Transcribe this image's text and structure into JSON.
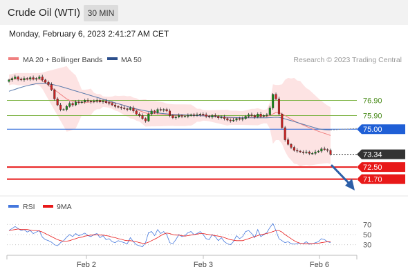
{
  "header": {
    "title": "Crude Oil (WTI)",
    "timeframe": "30 MIN"
  },
  "date_line": "Monday, February 6, 2023 2:41:27 AM CET",
  "legend": {
    "ma20": "MA 20 + Bollinger Bands",
    "ma50": "MA 50",
    "copyright": "Research © 2023 Trading Central"
  },
  "rsi_legend": {
    "rsi": "RSI",
    "ma9": "9MA"
  },
  "colors": {
    "up": "#1a8f1a",
    "down": "#cc2222",
    "ma20": "#f08080",
    "ma50": "#5577aa",
    "blue_level": "#1f5fd6",
    "support": "#e81919",
    "bands": "#fde3e3",
    "rsi": "#4477dd"
  },
  "chart_data": {
    "type": "candlestick",
    "price_axis": {
      "min": 71.0,
      "max": 79.2
    },
    "x_ticks": [
      "Feb 2",
      "Feb 3",
      "Feb 6"
    ],
    "levels": [
      {
        "label": "76.90",
        "value": 76.9,
        "kind": "resistance",
        "color": "#7cb342",
        "text_color": "#4a8c1c"
      },
      {
        "label": "75.90",
        "value": 75.9,
        "kind": "resistance",
        "color": "#7cb342",
        "text_color": "#4a8c1c"
      },
      {
        "label": "75.00",
        "value": 75.0,
        "kind": "pivot",
        "color": "#1f5fd6",
        "text_color": "#ffffff"
      },
      {
        "label": "72.50",
        "value": 72.5,
        "kind": "support",
        "color": "#e81919",
        "text_color": "#ffffff"
      },
      {
        "label": "71.70",
        "value": 71.7,
        "kind": "support",
        "color": "#e81919",
        "text_color": "#ffffff"
      }
    ],
    "last_price": {
      "label": "73.34",
      "value": 73.34
    },
    "close": [
      78.25,
      78.35,
      78.45,
      78.3,
      78.25,
      78.35,
      78.3,
      78.4,
      78.3,
      78.35,
      78.45,
      78.25,
      78.1,
      77.95,
      77.6,
      77.0,
      76.6,
      76.3,
      76.3,
      76.5,
      76.7,
      76.6,
      76.8,
      76.75,
      76.8,
      76.9,
      76.85,
      76.8,
      76.85,
      76.9,
      76.8,
      76.85,
      76.75,
      76.7,
      76.6,
      76.5,
      76.45,
      76.4,
      76.35,
      76.3,
      76.4,
      76.2,
      76.0,
      75.9,
      75.7,
      75.55,
      76.0,
      76.2,
      76.1,
      76.3,
      76.25,
      76.3,
      76.2,
      75.9,
      75.75,
      75.8,
      75.9,
      75.85,
      75.85,
      75.9,
      75.95,
      75.9,
      75.95,
      76.0,
      75.95,
      75.85,
      75.8,
      75.9,
      75.85,
      75.75,
      75.8,
      75.7,
      75.6,
      75.55,
      75.6,
      75.7,
      75.65,
      75.7,
      75.85,
      75.95,
      75.9,
      75.8,
      76.0,
      75.85,
      75.9,
      75.95,
      76.4,
      77.3,
      77.0,
      76.0,
      75.1,
      74.3,
      74.0,
      73.8,
      73.6,
      73.55,
      73.5,
      73.45,
      73.5,
      73.4,
      73.4,
      73.5,
      73.55,
      73.7,
      73.65,
      73.6,
      73.34
    ],
    "ma20": [
      78.25,
      78.3,
      78.32,
      78.3,
      78.3,
      78.3,
      78.3,
      78.32,
      78.3,
      78.32,
      78.3,
      78.2,
      78.05,
      77.9,
      77.75,
      77.6,
      77.45,
      77.3,
      77.15,
      77.0,
      76.9,
      76.85,
      76.8,
      76.78,
      76.77,
      76.77,
      76.78,
      76.8,
      76.8,
      76.82,
      76.82,
      76.82,
      76.8,
      76.78,
      76.75,
      76.72,
      76.68,
      76.62,
      76.57,
      76.5,
      76.45,
      76.38,
      76.3,
      76.22,
      76.15,
      76.07,
      76.03,
      76.02,
      76.02,
      76.01,
      76.0,
      75.98,
      75.95,
      75.94,
      75.93,
      75.92,
      75.92,
      75.92,
      75.92,
      75.93,
      75.93,
      75.92,
      75.92,
      75.92,
      75.91,
      75.9,
      75.88,
      75.86,
      75.84,
      75.82,
      75.8,
      75.78,
      75.76,
      75.75,
      75.75,
      75.75,
      75.74,
      75.74,
      75.76,
      75.78,
      75.8,
      75.8,
      75.82,
      75.82,
      75.83,
      75.85,
      75.9,
      76.0,
      76.1,
      76.1,
      76.0,
      75.9,
      75.78,
      75.65,
      75.55,
      75.45,
      75.36,
      75.27,
      75.18,
      75.1,
      75.02,
      74.94,
      74.86,
      74.79,
      74.72,
      74.66,
      74.58
    ],
    "ma50": [
      77.5,
      77.57,
      77.63,
      77.7,
      77.76,
      77.82,
      77.87,
      77.92,
      77.96,
      78.0,
      78.02,
      78.03,
      78.02,
      78.0,
      77.96,
      77.92,
      77.87,
      77.82,
      77.76,
      77.7,
      77.64,
      77.58,
      77.52,
      77.46,
      77.4,
      77.34,
      77.28,
      77.22,
      77.16,
      77.1,
      77.04,
      76.98,
      76.92,
      76.86,
      76.8,
      76.74,
      76.68,
      76.62,
      76.56,
      76.5,
      76.44,
      76.39,
      76.34,
      76.29,
      76.25,
      76.21,
      76.17,
      76.14,
      76.11,
      76.08,
      76.05,
      76.03,
      76.01,
      75.99,
      75.98,
      75.97,
      75.96,
      75.95,
      75.94,
      75.93,
      75.92,
      75.91,
      75.9,
      75.89,
      75.88,
      75.87,
      75.86,
      75.85,
      75.84,
      75.83,
      75.82,
      75.8,
      75.79,
      75.78,
      75.77,
      75.76,
      75.76,
      75.75,
      75.75,
      75.75,
      75.75,
      75.75,
      75.75,
      75.75,
      75.75,
      75.75,
      75.76,
      75.78,
      75.79,
      75.78,
      75.74,
      75.68,
      75.62,
      75.56,
      75.5,
      75.44,
      75.38,
      75.32,
      75.26,
      75.2,
      75.14,
      75.08,
      75.02,
      74.99,
      74.97,
      74.96,
      74.95
    ],
    "rsi": {
      "ticks": [
        30,
        50,
        70
      ],
      "rsi": [
        58,
        62,
        66,
        62,
        58,
        60,
        55,
        58,
        52,
        55,
        58,
        45,
        40,
        38,
        35,
        30,
        28,
        34,
        38,
        45,
        50,
        46,
        52,
        48,
        50,
        53,
        48,
        46,
        50,
        52,
        44,
        48,
        40,
        42,
        36,
        34,
        38,
        36,
        34,
        32,
        44,
        36,
        30,
        28,
        26,
        34,
        54,
        56,
        48,
        60,
        52,
        56,
        50,
        34,
        32,
        40,
        50,
        46,
        48,
        54,
        56,
        50,
        52,
        56,
        50,
        42,
        40,
        50,
        46,
        38,
        44,
        36,
        32,
        30,
        36,
        48,
        42,
        46,
        56,
        58,
        52,
        44,
        60,
        46,
        50,
        54,
        64,
        72,
        58,
        42,
        38,
        34,
        36,
        32,
        31,
        32,
        33,
        32,
        36,
        31,
        32,
        34,
        36,
        42,
        40,
        36,
        34
      ],
      "ma9": [
        58,
        59,
        60,
        61,
        60,
        60,
        60,
        59,
        58,
        58,
        57,
        55,
        52,
        49,
        46,
        43,
        40,
        38,
        37,
        37,
        38,
        40,
        42,
        44,
        45,
        47,
        48,
        49,
        49,
        50,
        49,
        49,
        48,
        47,
        45,
        44,
        42,
        41,
        39,
        38,
        38,
        37,
        36,
        34,
        33,
        33,
        35,
        38,
        41,
        44,
        48,
        51,
        53,
        52,
        50,
        49,
        49,
        48,
        47,
        48,
        49,
        50,
        51,
        52,
        52,
        51,
        50,
        49,
        48,
        47,
        46,
        44,
        42,
        40,
        39,
        38,
        38,
        38,
        40,
        42,
        44,
        46,
        48,
        50,
        51,
        52,
        54,
        56,
        58,
        58,
        55,
        50,
        46,
        42,
        38,
        35,
        33,
        32,
        32,
        32,
        32,
        33,
        33,
        34,
        35,
        36,
        36
      ]
    }
  }
}
